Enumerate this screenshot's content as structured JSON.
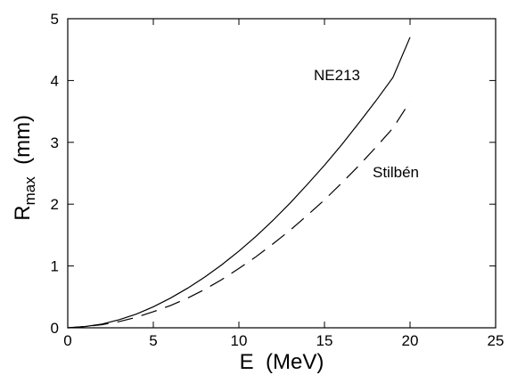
{
  "chart_data": {
    "type": "line",
    "title": "",
    "xlabel": "E  (MeV)",
    "ylabel": {
      "main": "R",
      "subscript": "max",
      "unit": "  (mm)"
    },
    "xlim": [
      0,
      25
    ],
    "ylim": [
      0,
      5
    ],
    "x_ticks": [
      0,
      5,
      10,
      15,
      20,
      25
    ],
    "y_ticks": [
      0,
      1,
      2,
      3,
      4,
      5
    ],
    "grid": false,
    "legend": "none",
    "series": [
      {
        "name": "NE213",
        "style": "solid",
        "color": "#000000",
        "x": [
          0,
          1,
          2,
          3,
          4,
          5,
          6,
          7,
          8,
          9,
          10,
          11,
          12,
          13,
          14,
          15,
          16,
          17,
          18,
          19,
          20
        ],
        "y": [
          0,
          0.02,
          0.06,
          0.13,
          0.22,
          0.34,
          0.48,
          0.64,
          0.82,
          1.02,
          1.24,
          1.48,
          1.74,
          2.02,
          2.32,
          2.63,
          2.96,
          3.31,
          3.67,
          4.05,
          4.7
        ]
      },
      {
        "name": "Stilbén",
        "style": "dashed",
        "color": "#000000",
        "x": [
          0,
          1,
          2,
          3,
          4,
          5,
          6,
          7,
          8,
          9,
          10,
          11,
          12,
          13,
          14,
          15,
          16,
          17,
          18,
          19,
          20
        ],
        "y": [
          0,
          0.02,
          0.05,
          0.1,
          0.17,
          0.26,
          0.36,
          0.48,
          0.62,
          0.78,
          0.96,
          1.15,
          1.36,
          1.58,
          1.82,
          2.07,
          2.34,
          2.62,
          2.92,
          3.23,
          3.66
        ]
      }
    ]
  }
}
